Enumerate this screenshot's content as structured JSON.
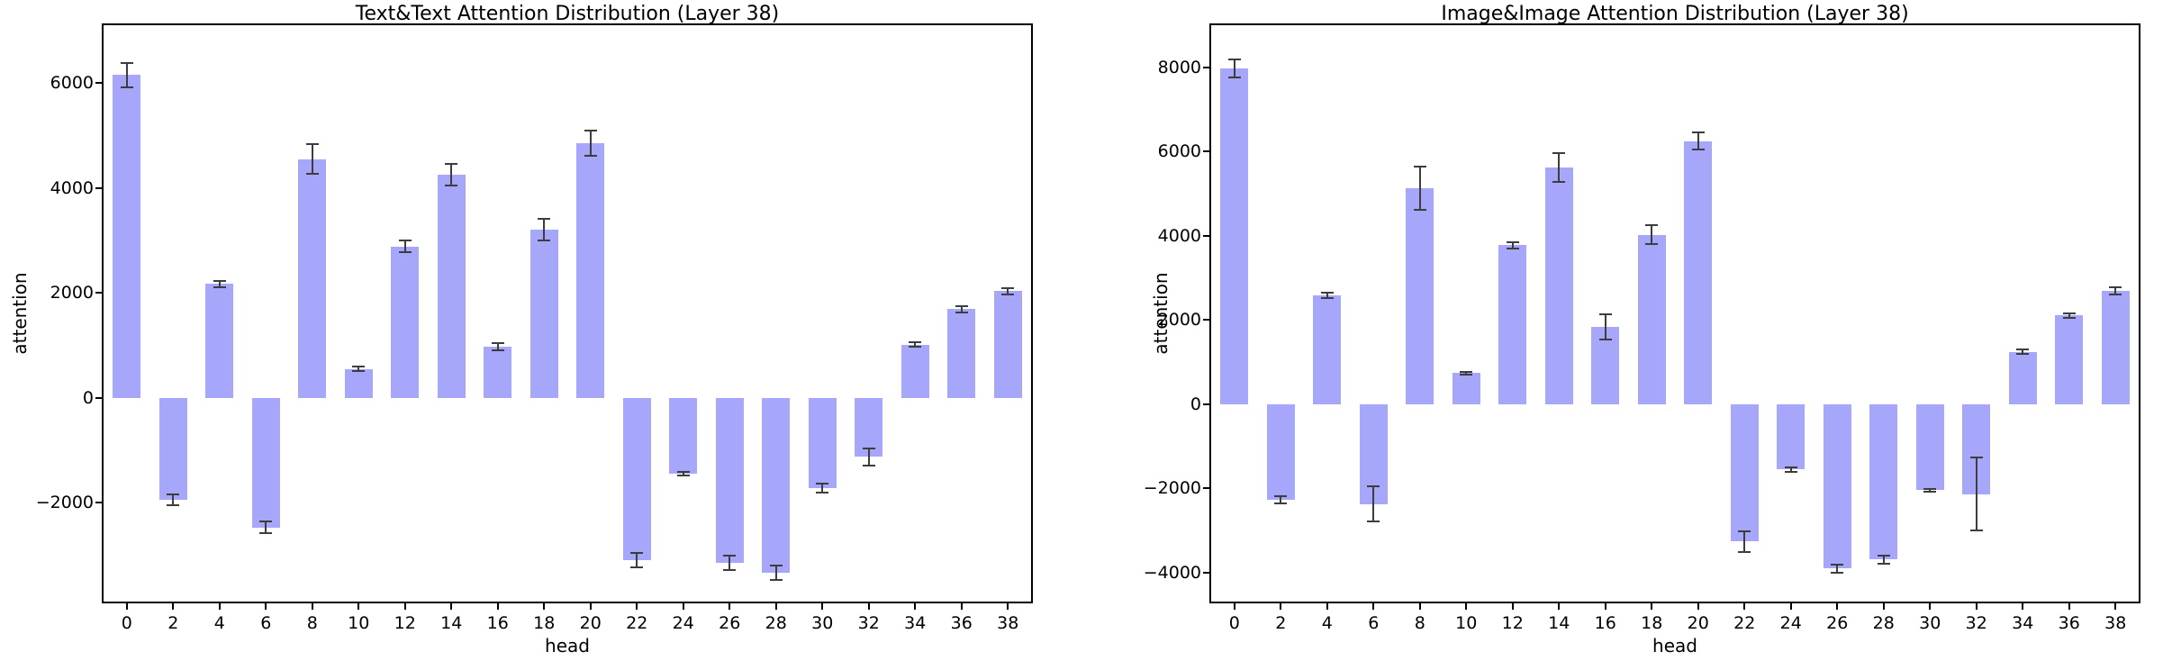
{
  "figure": {
    "background": "#ffffff",
    "bar_color": "#a6a6fa",
    "error_color": "#3d3d3d",
    "spine_color": "#000000"
  },
  "chart_data": [
    {
      "type": "bar",
      "title": "Text&Text Attention Distribution (Layer 38)",
      "xlabel": "head",
      "ylabel": "attention",
      "legend": "none",
      "grid": false,
      "categories": [
        0,
        2,
        4,
        6,
        8,
        10,
        12,
        14,
        16,
        18,
        20,
        22,
        24,
        26,
        28,
        30,
        32,
        34,
        36,
        38
      ],
      "values": [
        6150,
        -1950,
        2170,
        -2470,
        4550,
        550,
        2880,
        4250,
        970,
        3200,
        4850,
        -3100,
        -1450,
        -3150,
        -3330,
        -1720,
        -1130,
        1010,
        1690,
        2030
      ],
      "errors": [
        230,
        100,
        60,
        110,
        280,
        40,
        110,
        210,
        70,
        210,
        240,
        140,
        40,
        140,
        140,
        90,
        160,
        40,
        60,
        60
      ],
      "yticks": [
        -2000,
        0,
        2000,
        4000,
        6000
      ],
      "ylim": [
        -3885,
        7100
      ]
    },
    {
      "type": "bar",
      "title": "Image&Image Attention Distribution (Layer 38)",
      "xlabel": "head",
      "ylabel": "attention",
      "legend": "none",
      "grid": false,
      "categories": [
        0,
        2,
        4,
        6,
        8,
        10,
        12,
        14,
        16,
        18,
        20,
        22,
        24,
        26,
        28,
        30,
        32,
        34,
        36,
        38
      ],
      "values": [
        7980,
        -2270,
        2590,
        -2370,
        5130,
        740,
        3780,
        5620,
        1830,
        4030,
        6250,
        -3260,
        -1550,
        -3900,
        -3690,
        -2040,
        -2130,
        1250,
        2110,
        2700
      ],
      "errors": [
        210,
        90,
        60,
        420,
        520,
        40,
        70,
        340,
        300,
        230,
        200,
        250,
        50,
        100,
        100,
        30,
        870,
        60,
        60,
        90
      ],
      "yticks": [
        -4000,
        -2000,
        0,
        2000,
        4000,
        6000,
        8000
      ],
      "ylim": [
        -4685,
        9005
      ]
    }
  ]
}
